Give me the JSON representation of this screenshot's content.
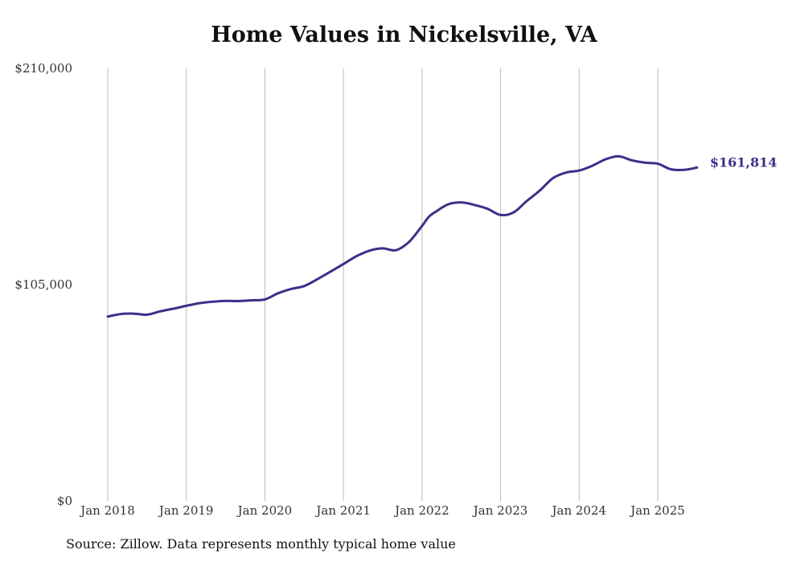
{
  "colors": {
    "line": "#3b3089",
    "grid": "#bbbbbb",
    "text": "#333333"
  },
  "chart_data": {
    "type": "line",
    "title": "Home Values in Nickelsville, VA",
    "xlabel": "",
    "ylabel": "",
    "ylim": [
      0,
      210000
    ],
    "y_ticks": [
      0,
      105000,
      210000
    ],
    "y_tick_labels": [
      "$0",
      "$105,000",
      "$210,000"
    ],
    "x_ticks": [
      "2018-01",
      "2019-01",
      "2020-01",
      "2021-01",
      "2022-01",
      "2023-01",
      "2024-01",
      "2025-01"
    ],
    "x_tick_labels": [
      "Jan 2018",
      "Jan 2019",
      "Jan 2020",
      "Jan 2021",
      "Jan 2022",
      "Jan 2023",
      "Jan 2024",
      "Jan 2025"
    ],
    "grid": "vertical lines at x ticks",
    "end_label": "$161,814",
    "series": [
      {
        "x": [
          "2018-01",
          "2018-03",
          "2018-05",
          "2018-07",
          "2018-09",
          "2018-11",
          "2019-01",
          "2019-03",
          "2019-05",
          "2019-07",
          "2019-09",
          "2019-11",
          "2020-01",
          "2020-03",
          "2020-05",
          "2020-07",
          "2020-09",
          "2020-11",
          "2021-01",
          "2021-03",
          "2021-05",
          "2021-07",
          "2021-09",
          "2021-11",
          "2022-01",
          "2022-02",
          "2022-03",
          "2022-05",
          "2022-07",
          "2022-09",
          "2022-11",
          "2023-01",
          "2023-03",
          "2023-05",
          "2023-07",
          "2023-09",
          "2023-11",
          "2024-01",
          "2024-03",
          "2024-05",
          "2024-07",
          "2024-09",
          "2024-11",
          "2025-01",
          "2025-03",
          "2025-05",
          "2025-07"
        ],
        "values": [
          89500,
          90700,
          90900,
          90400,
          92000,
          93300,
          94700,
          96000,
          96700,
          97100,
          97000,
          97400,
          97800,
          100800,
          102900,
          104300,
          107600,
          111300,
          115000,
          118800,
          121500,
          122600,
          121700,
          125700,
          133500,
          137800,
          140200,
          144000,
          144900,
          143700,
          141800,
          138800,
          140100,
          145600,
          150700,
          156700,
          159400,
          160400,
          162700,
          165800,
          167300,
          165400,
          164200,
          163700,
          161000,
          160700,
          161814
        ]
      }
    ]
  },
  "footer": {
    "source": "Source: Zillow. Data represents monthly typical home value"
  }
}
